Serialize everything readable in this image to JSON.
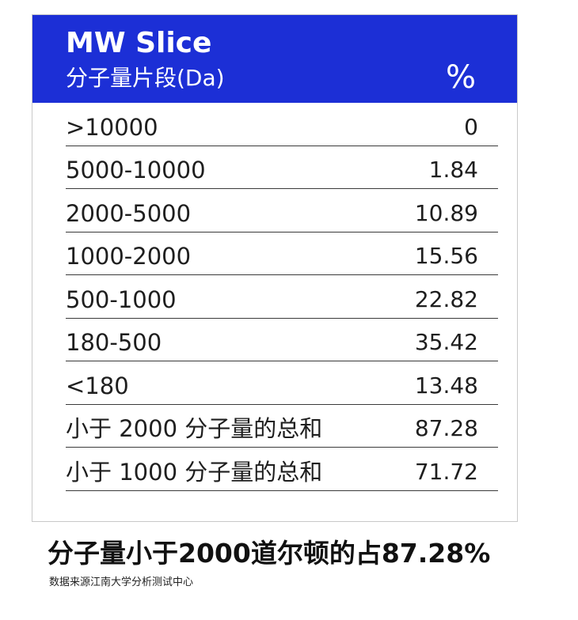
{
  "table": {
    "title": "MW Slice",
    "subtitle": "分子量片段(Da)",
    "unit_header": "%",
    "rows": [
      {
        "label": ">10000",
        "value": "0"
      },
      {
        "label": "5000-10000",
        "value": "1.84"
      },
      {
        "label": "2000-5000",
        "value": "10.89"
      },
      {
        "label": "1000-2000",
        "value": "15.56"
      },
      {
        "label": "500-1000",
        "value": "22.82"
      },
      {
        "label": "180-500",
        "value": "35.42"
      },
      {
        "label": "<180",
        "value": "13.48"
      },
      {
        "label": "小于 2000 分子量的总和",
        "value": "87.28"
      },
      {
        "label": "小于 1000 分子量的总和",
        "value": "71.72"
      }
    ]
  },
  "headline": "分子量小于2000道尔顿的占87.28%",
  "source": "数据来源江南大学分析测试中心",
  "colors": {
    "header_bg": "#1c2fd6",
    "header_text": "#ffffff",
    "divider": "#3a3a3a"
  }
}
